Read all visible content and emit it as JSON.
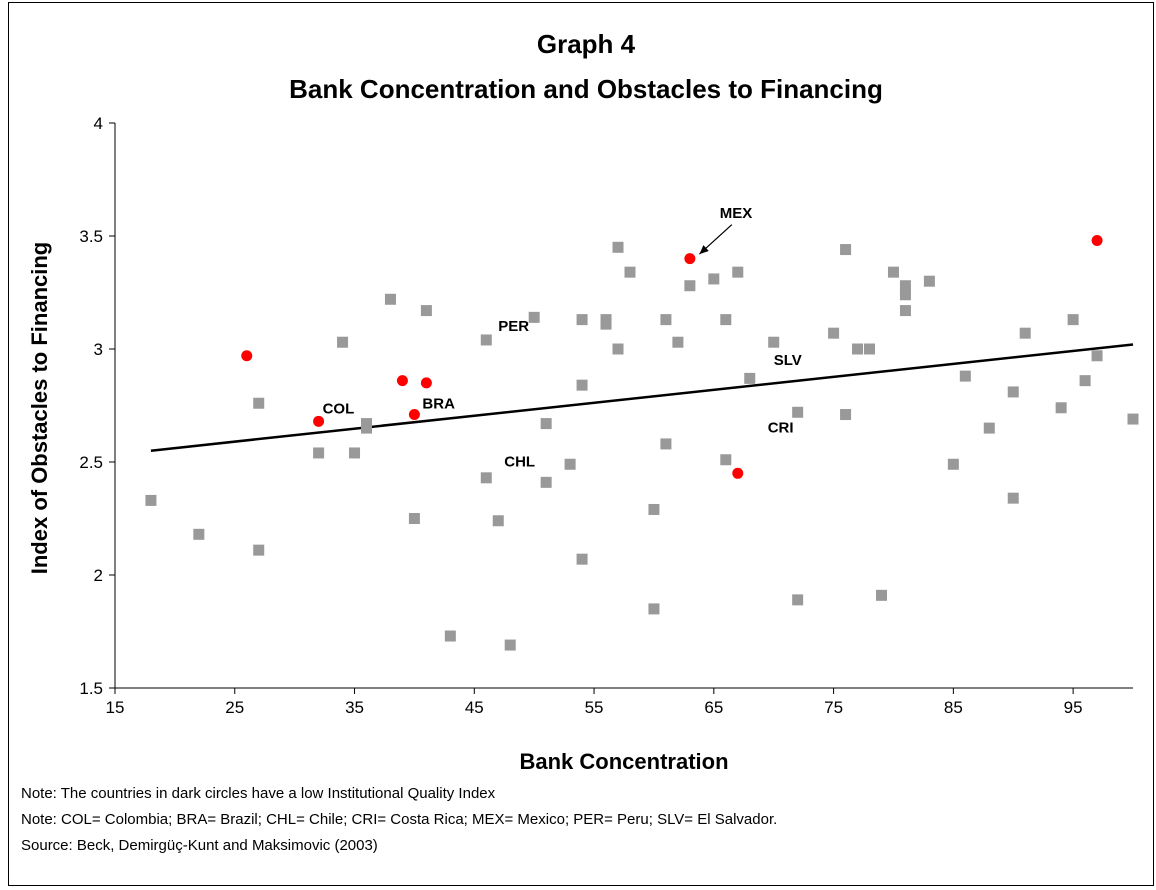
{
  "chart_data": {
    "type": "scatter",
    "title": "Graph 4",
    "subtitle": "Bank Concentration and Obstacles to Financing",
    "xlabel": "Bank Concentration",
    "ylabel": "Index of Obstacles to Financing",
    "xlim": [
      15,
      100
    ],
    "ylim": [
      1.5,
      4
    ],
    "xticks": [
      "15",
      "25",
      "35",
      "45",
      "55",
      "65",
      "75",
      "85",
      "95"
    ],
    "xtick_values": [
      15,
      25,
      35,
      45,
      55,
      65,
      75,
      85,
      95
    ],
    "yticks": [
      "1.5",
      "2",
      "2.5",
      "3",
      "3.5",
      "4"
    ],
    "ytick_values": [
      1.5,
      2,
      2.5,
      3,
      3.5,
      4
    ],
    "grid": false,
    "trendline": {
      "x": [
        18,
        100
      ],
      "y": [
        2.55,
        3.02
      ]
    },
    "series": [
      {
        "marker": "square",
        "color": "#999999",
        "points": [
          [
            18,
            2.33
          ],
          [
            22,
            2.18
          ],
          [
            27,
            2.76
          ],
          [
            27,
            2.11
          ],
          [
            32,
            2.54
          ],
          [
            34,
            3.03
          ],
          [
            35,
            2.54
          ],
          [
            36,
            2.67
          ],
          [
            36,
            2.65
          ],
          [
            38,
            3.22
          ],
          [
            40,
            2.25
          ],
          [
            41,
            3.17
          ],
          [
            43,
            1.73
          ],
          [
            46,
            3.04
          ],
          [
            46,
            2.43
          ],
          [
            47,
            2.24
          ],
          [
            48,
            1.69
          ],
          [
            50,
            3.14
          ],
          [
            51,
            2.67
          ],
          [
            51,
            2.41
          ],
          [
            53,
            2.49
          ],
          [
            54,
            3.13
          ],
          [
            54,
            2.84
          ],
          [
            54,
            2.07
          ],
          [
            56,
            3.13
          ],
          [
            56,
            3.11
          ],
          [
            57,
            3.45
          ],
          [
            57,
            3.0
          ],
          [
            58,
            3.34
          ],
          [
            60,
            2.29
          ],
          [
            60,
            1.85
          ],
          [
            61,
            3.13
          ],
          [
            61,
            2.58
          ],
          [
            62,
            3.03
          ],
          [
            63,
            3.28
          ],
          [
            65,
            3.31
          ],
          [
            66,
            3.13
          ],
          [
            66,
            2.51
          ],
          [
            67,
            3.34
          ],
          [
            68,
            2.87
          ],
          [
            70,
            3.03
          ],
          [
            72,
            2.72
          ],
          [
            72,
            1.89
          ],
          [
            75,
            3.07
          ],
          [
            76,
            3.44
          ],
          [
            76,
            2.71
          ],
          [
            77,
            3.0
          ],
          [
            78,
            3.0
          ],
          [
            79,
            1.91
          ],
          [
            80,
            3.34
          ],
          [
            81,
            3.28
          ],
          [
            81,
            3.24
          ],
          [
            81,
            3.17
          ],
          [
            83,
            3.3
          ],
          [
            85,
            2.49
          ],
          [
            86,
            2.88
          ],
          [
            88,
            2.65
          ],
          [
            90,
            2.81
          ],
          [
            90,
            2.34
          ],
          [
            91,
            3.07
          ],
          [
            94,
            2.74
          ],
          [
            95,
            3.13
          ],
          [
            96,
            2.86
          ],
          [
            97,
            2.97
          ],
          [
            100,
            2.69
          ]
        ]
      },
      {
        "marker": "circle",
        "color": "#ff0000",
        "points": [
          [
            26,
            2.97
          ],
          [
            32,
            2.68
          ],
          [
            39,
            2.86
          ],
          [
            40,
            2.71
          ],
          [
            41,
            2.85
          ],
          [
            63,
            3.4
          ],
          [
            67,
            2.45
          ],
          [
            97,
            3.48
          ]
        ]
      }
    ],
    "annotations": [
      {
        "text": "COL",
        "x": 32,
        "y": 2.68
      },
      {
        "text": "BRA",
        "x": 40,
        "y": 2.71
      },
      {
        "text": "CHL",
        "x": 47.5,
        "y": 2.48
      },
      {
        "text": "PER",
        "x": 47,
        "y": 3.08
      },
      {
        "text": "MEX",
        "x": 65.5,
        "y": 3.58
      },
      {
        "text": "SLV",
        "x": 70,
        "y": 2.93
      },
      {
        "text": "CRI",
        "x": 69.5,
        "y": 2.63
      }
    ]
  },
  "notes": {
    "line1": "Note: The countries in dark circles have a low Institutional Quality Index",
    "line2": "Note: COL= Colombia; BRA= Brazil; CHL= Chile; CRI= Costa Rica; MEX= Mexico; PER= Peru; SLV= El Salvador.",
    "line3": "Source: Beck, Demirgüç-Kunt and Maksimovic (2003)"
  }
}
